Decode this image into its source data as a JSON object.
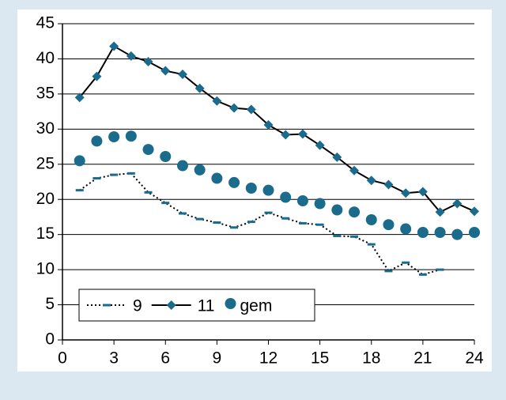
{
  "chart_data": {
    "type": "line",
    "x": [
      1,
      2,
      3,
      4,
      5,
      6,
      7,
      8,
      9,
      10,
      11,
      12,
      13,
      14,
      15,
      16,
      17,
      18,
      19,
      20,
      21,
      22,
      23,
      24
    ],
    "series": [
      {
        "name": "9",
        "color": "#1a6b8c",
        "line_color": "#000000",
        "line_style": "dotted",
        "marker": "dash",
        "values": [
          21.3,
          23.0,
          23.5,
          23.7,
          21.0,
          19.5,
          18.0,
          17.2,
          16.7,
          16.0,
          16.8,
          18.1,
          17.3,
          16.6,
          16.4,
          14.8,
          14.7,
          13.6,
          9.8,
          11.0,
          9.3,
          10.0,
          null,
          null
        ]
      },
      {
        "name": "11",
        "color": "#1a6b8c",
        "line_color": "#000000",
        "line_style": "solid",
        "marker": "diamond",
        "values": [
          34.5,
          37.5,
          41.8,
          40.4,
          39.6,
          38.3,
          37.8,
          35.8,
          34.0,
          33.0,
          32.8,
          30.6,
          29.2,
          29.3,
          27.7,
          26.0,
          24.1,
          22.7,
          22.1,
          20.9,
          21.1,
          18.2,
          19.4,
          18.3
        ]
      },
      {
        "name": "gem",
        "color": "#1a6b8c",
        "line_color": "#000000",
        "line_style": "none",
        "marker": "circle",
        "values": [
          25.5,
          28.3,
          28.9,
          29.0,
          27.1,
          26.1,
          24.8,
          24.2,
          23.0,
          22.4,
          21.6,
          21.3,
          20.3,
          19.8,
          19.4,
          18.5,
          18.2,
          17.1,
          16.4,
          15.8,
          15.3,
          15.3,
          15.0,
          15.3
        ]
      }
    ],
    "xlim": [
      0,
      24
    ],
    "xticks": [
      0,
      3,
      6,
      9,
      12,
      15,
      18,
      21,
      24
    ],
    "ylim": [
      0,
      45
    ],
    "yticks": [
      0,
      5,
      10,
      15,
      20,
      25,
      30,
      35,
      40,
      45
    ],
    "grid": true,
    "legend": "lower left"
  }
}
